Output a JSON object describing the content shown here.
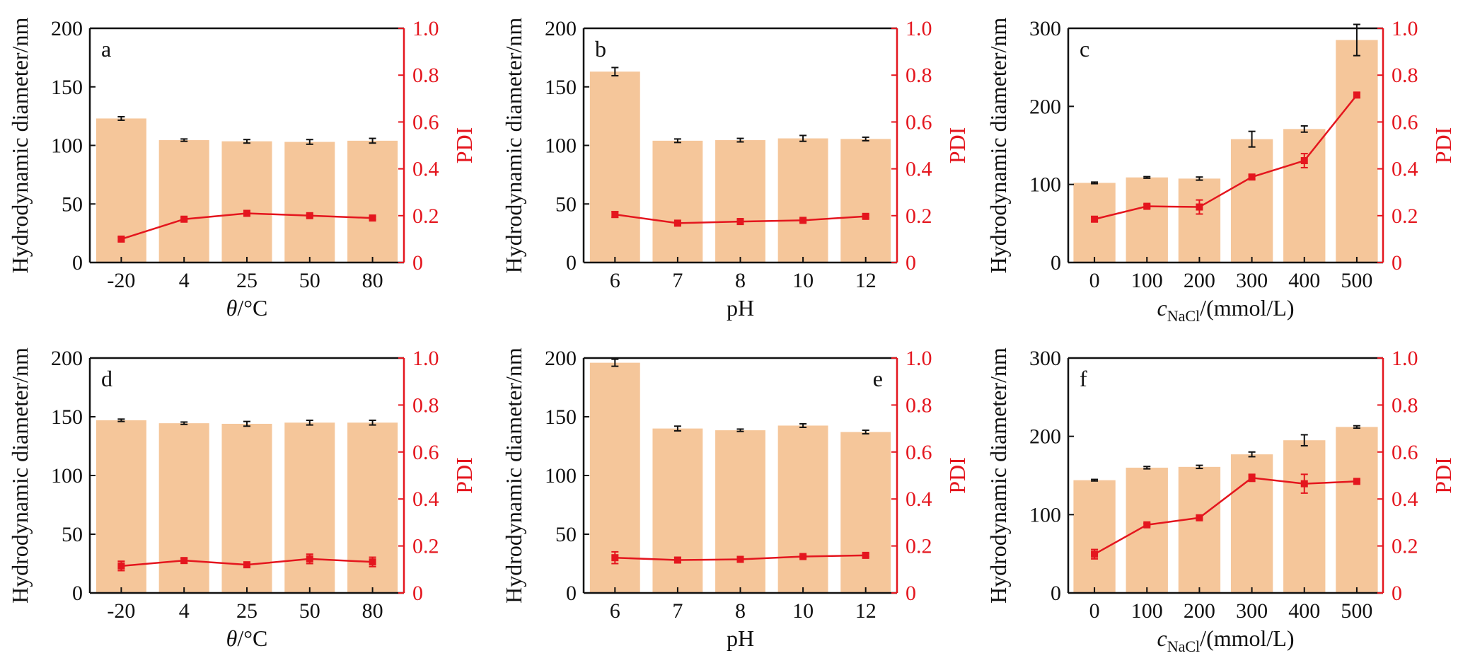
{
  "colors": {
    "bar": "#f5c69a",
    "pdi": "#e4161e",
    "axis": "#111111"
  },
  "chart_data": [
    {
      "type": "bar",
      "panel": "a",
      "categories": [
        "-20",
        "4",
        "25",
        "50",
        "80"
      ],
      "xlabel": "θ/°C",
      "ylabel": "Hydrodynamic diameter/nm",
      "ylim": [
        0,
        200
      ],
      "yticks": [
        "0",
        "50",
        "100",
        "150",
        "200"
      ],
      "y2label": "PDI",
      "y2lim": [
        0,
        1.0
      ],
      "y2ticks": [
        "0",
        "0.2",
        "0.4",
        "0.6",
        "0.8",
        "1.0"
      ],
      "bars": {
        "values": [
          123,
          104.5,
          103.5,
          103,
          104
        ],
        "errors": [
          1.5,
          1,
          1.5,
          2,
          2
        ]
      },
      "pdi": {
        "values": [
          0.1,
          0.185,
          0.21,
          0.2,
          0.19
        ],
        "errors": [
          0.008,
          0.006,
          0.006,
          0.006,
          0.006
        ]
      }
    },
    {
      "type": "bar",
      "panel": "b",
      "categories": [
        "6",
        "7",
        "8",
        "10",
        "12"
      ],
      "xlabel": "pH",
      "ylabel": "Hydrodynamic diameter/nm",
      "ylim": [
        0,
        200
      ],
      "yticks": [
        "0",
        "50",
        "100",
        "150",
        "200"
      ],
      "y2label": "PDI",
      "y2lim": [
        0,
        1.0
      ],
      "y2ticks": [
        "0",
        "0.2",
        "0.4",
        "0.6",
        "0.8",
        "1.0"
      ],
      "bars": {
        "values": [
          163,
          104,
          104.5,
          106,
          105.5
        ],
        "errors": [
          3.5,
          1.5,
          1.5,
          2.5,
          1.5
        ]
      },
      "pdi": {
        "values": [
          0.205,
          0.168,
          0.175,
          0.18,
          0.197
        ],
        "errors": [
          0.012,
          0.006,
          0.012,
          0.008,
          0.006
        ]
      }
    },
    {
      "type": "bar",
      "panel": "c",
      "categories": [
        "0",
        "100",
        "200",
        "300",
        "400",
        "500"
      ],
      "xlabel": "cNaCl/(mmol/L)",
      "xlabel_parts": {
        "var": "c",
        "sub": "NaCl",
        "rest": "/(mmol/L)"
      },
      "ylabel": "Hydrodynamic diameter/nm",
      "ylim": [
        0,
        300
      ],
      "yticks": [
        "0",
        "100",
        "200",
        "300"
      ],
      "y2label": "PDI",
      "y2lim": [
        0,
        1.0
      ],
      "y2ticks": [
        "0",
        "0.2",
        "0.4",
        "0.6",
        "0.8",
        "1.0"
      ],
      "bars": {
        "values": [
          102,
          109,
          107.5,
          158,
          171,
          285
        ],
        "errors": [
          1,
          1,
          2,
          10,
          4,
          20
        ]
      },
      "pdi": {
        "values": [
          0.185,
          0.24,
          0.237,
          0.365,
          0.435,
          0.715
        ],
        "errors": [
          0.01,
          0.008,
          0.03,
          0.01,
          0.03,
          0.01
        ]
      }
    },
    {
      "type": "bar",
      "panel": "d",
      "categories": [
        "-20",
        "4",
        "25",
        "50",
        "80"
      ],
      "xlabel": "θ/°C",
      "ylabel": "Hydrodynamic diameter/nm",
      "ylim": [
        0,
        200
      ],
      "yticks": [
        "0",
        "50",
        "100",
        "150",
        "200"
      ],
      "y2label": "PDI",
      "y2lim": [
        0,
        1.0
      ],
      "y2ticks": [
        "0",
        "0.2",
        "0.4",
        "0.6",
        "0.8",
        "1.0"
      ],
      "bars": {
        "values": [
          147,
          144.5,
          144,
          145,
          145
        ],
        "errors": [
          1,
          1,
          2,
          2,
          2
        ]
      },
      "pdi": {
        "values": [
          0.115,
          0.138,
          0.12,
          0.145,
          0.132
        ],
        "errors": [
          0.02,
          0.01,
          0.008,
          0.02,
          0.02
        ]
      }
    },
    {
      "type": "bar",
      "panel": "e",
      "categories": [
        "6",
        "7",
        "8",
        "10",
        "12"
      ],
      "xlabel": "pH",
      "ylabel": "Hydrodynamic diameter/nm",
      "ylim": [
        0,
        200
      ],
      "yticks": [
        "0",
        "50",
        "100",
        "150",
        "200"
      ],
      "y2label": "PDI",
      "y2lim": [
        0,
        1.0
      ],
      "y2ticks": [
        "0",
        "0.2",
        "0.4",
        "0.6",
        "0.8",
        "1.0"
      ],
      "bars": {
        "values": [
          196,
          140,
          138.5,
          142.5,
          137
        ],
        "errors": [
          3,
          2,
          1,
          1.5,
          1.5
        ]
      },
      "pdi": {
        "values": [
          0.15,
          0.14,
          0.143,
          0.155,
          0.16
        ],
        "errors": [
          0.025,
          0.01,
          0.012,
          0.006,
          0.006
        ]
      }
    },
    {
      "type": "bar",
      "panel": "f",
      "categories": [
        "0",
        "100",
        "200",
        "300",
        "400",
        "500"
      ],
      "xlabel": "cNaCl/(mmol/L)",
      "xlabel_parts": {
        "var": "c",
        "sub": "NaCl",
        "rest": "/(mmol/L)"
      },
      "ylabel": "Hydrodynamic diameter/nm",
      "ylim": [
        0,
        300
      ],
      "yticks": [
        "0",
        "100",
        "200",
        "300"
      ],
      "y2label": "PDI",
      "y2lim": [
        0,
        1.0
      ],
      "y2ticks": [
        "0",
        "0.2",
        "0.4",
        "0.6",
        "0.8",
        "1.0"
      ],
      "bars": {
        "values": [
          144,
          160,
          161,
          177,
          195,
          212
        ],
        "errors": [
          1,
          1.5,
          2,
          3,
          7,
          1.5
        ]
      },
      "pdi": {
        "values": [
          0.165,
          0.29,
          0.32,
          0.49,
          0.465,
          0.475
        ],
        "errors": [
          0.02,
          0.006,
          0.006,
          0.015,
          0.04,
          0.006
        ]
      }
    }
  ]
}
